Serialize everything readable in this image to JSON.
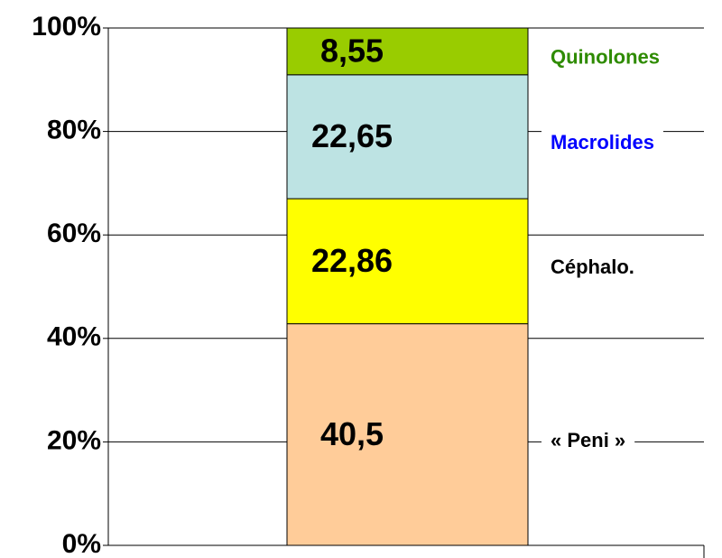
{
  "chart_data": {
    "type": "bar",
    "stack": "percent",
    "categories": [
      null
    ],
    "series": [
      {
        "name": "« Peni »",
        "color": "#ffcc99",
        "label_color": "#000000",
        "values": [
          40.5
        ],
        "value_labels": [
          "40,5"
        ]
      },
      {
        "name": "Céphalo.",
        "color": "#ffff00",
        "label_color": "#000000",
        "values": [
          22.86
        ],
        "value_labels": [
          "22,86"
        ]
      },
      {
        "name": "Macrolides",
        "color": "#bde3e3",
        "label_color": "#0000ff",
        "values": [
          22.65
        ],
        "value_labels": [
          "22,65"
        ]
      },
      {
        "name": "Quinolones",
        "color": "#99cc00",
        "label_color": "#2e8b00",
        "values": [
          8.55
        ],
        "value_labels": [
          "8,55"
        ]
      }
    ],
    "ylim": [
      0,
      100
    ],
    "yticks": [
      {
        "value": 0,
        "label": "0%"
      },
      {
        "value": 20,
        "label": "20%"
      },
      {
        "value": 40,
        "label": "40%"
      },
      {
        "value": 60,
        "label": "60%"
      },
      {
        "value": 80,
        "label": "80%"
      },
      {
        "value": 100,
        "label": "100%"
      }
    ],
    "grid": true
  }
}
